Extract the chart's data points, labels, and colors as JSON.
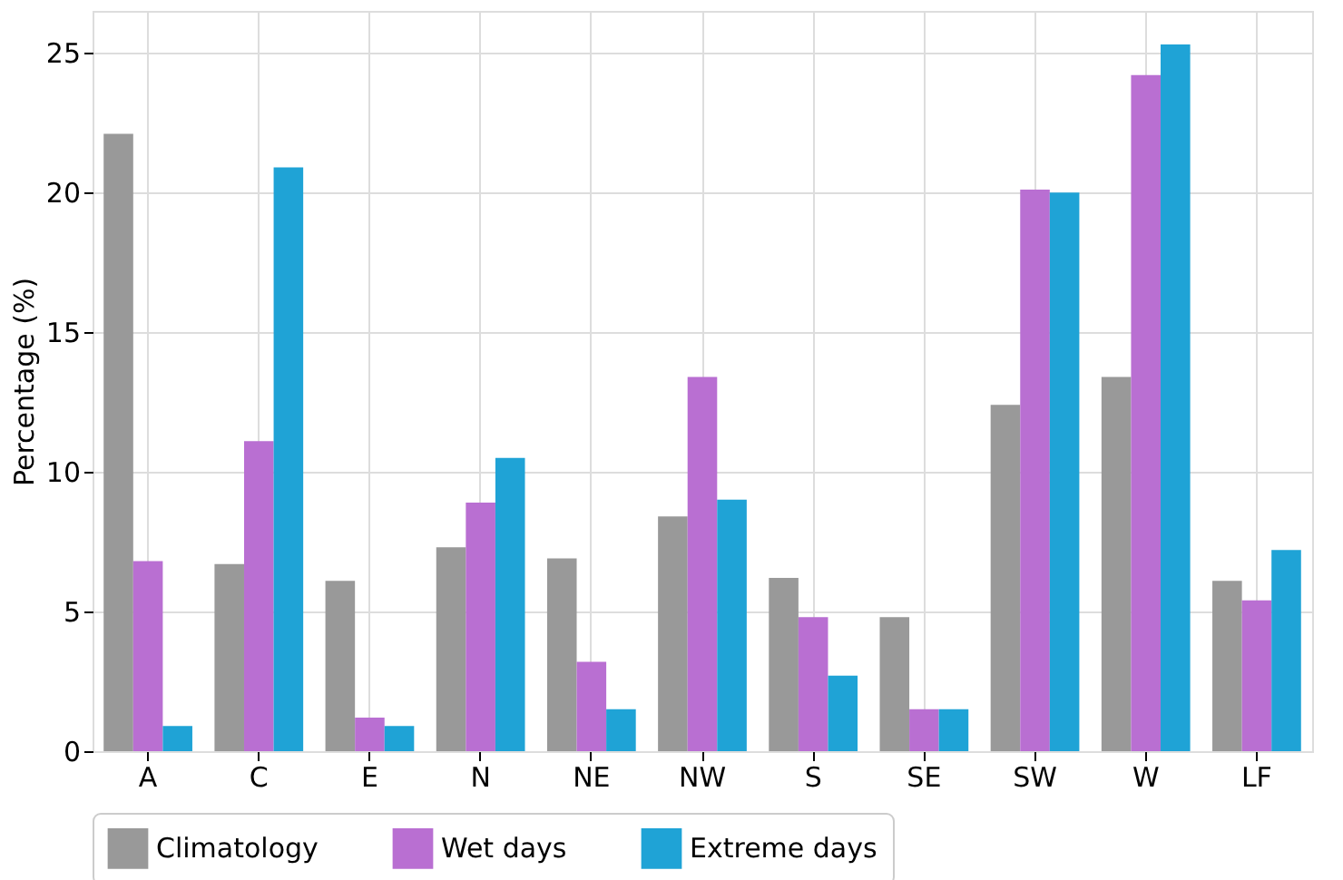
{
  "chart_data": {
    "type": "bar",
    "ylabel": "Percentage (%)",
    "categories": [
      "A",
      "C",
      "E",
      "N",
      "NE",
      "NW",
      "S",
      "SE",
      "SW",
      "W",
      "LF"
    ],
    "series": [
      {
        "name": "Climatology",
        "color": "#999999",
        "values": [
          22.1,
          6.7,
          6.1,
          7.3,
          6.9,
          8.4,
          6.2,
          4.8,
          12.4,
          13.4,
          6.1
        ]
      },
      {
        "name": "Wet days",
        "color": "#b96fd2",
        "values": [
          6.8,
          11.1,
          1.2,
          8.9,
          3.2,
          13.4,
          4.8,
          1.5,
          20.1,
          24.2,
          5.4
        ]
      },
      {
        "name": "Extreme days",
        "color": "#1fa3d6",
        "values": [
          0.9,
          20.9,
          0.9,
          10.5,
          1.5,
          9.0,
          2.7,
          1.5,
          20.0,
          25.3,
          7.2
        ]
      }
    ],
    "ylim": [
      0,
      26.5
    ],
    "yticks": [
      0,
      5,
      10,
      15,
      20,
      25
    ],
    "grid": true,
    "legend": "bottom"
  }
}
